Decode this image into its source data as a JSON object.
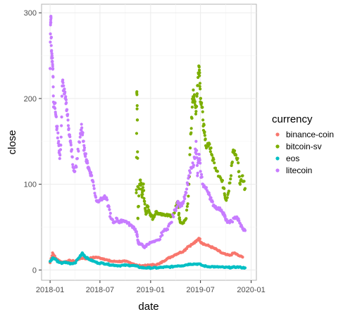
{
  "chart_data": {
    "type": "scatter",
    "title": "",
    "xlabel": "date",
    "ylabel": "close",
    "x_ticks": [
      "2018-01",
      "2018-07",
      "2019-01",
      "2019-07",
      "2020-01"
    ],
    "y_ticks": [
      0,
      100,
      200,
      300
    ],
    "xlim": [
      "2017-12-01",
      "2020-01-20"
    ],
    "ylim": [
      -12,
      310
    ],
    "grid": true,
    "legend_title": "currency",
    "legend_position": "right",
    "series": [
      {
        "name": "binance-coin",
        "color": "#F8766D",
        "points": [
          [
            "2018-01-01",
            8.5
          ],
          [
            "2018-01-10",
            20
          ],
          [
            "2018-01-20",
            14
          ],
          [
            "2018-02-01",
            11
          ],
          [
            "2018-02-15",
            9
          ],
          [
            "2018-03-01",
            10
          ],
          [
            "2018-03-15",
            11
          ],
          [
            "2018-04-01",
            10
          ],
          [
            "2018-04-15",
            13
          ],
          [
            "2018-05-01",
            14
          ],
          [
            "2018-05-15",
            13
          ],
          [
            "2018-06-01",
            14
          ],
          [
            "2018-06-15",
            15
          ],
          [
            "2018-07-01",
            14
          ],
          [
            "2018-07-15",
            13
          ],
          [
            "2018-08-01",
            11
          ],
          [
            "2018-08-15",
            10
          ],
          [
            "2018-09-01",
            10
          ],
          [
            "2018-09-15",
            10
          ],
          [
            "2018-10-01",
            10
          ],
          [
            "2018-10-15",
            9
          ],
          [
            "2018-11-01",
            7
          ],
          [
            "2018-11-15",
            5
          ],
          [
            "2018-12-01",
            5
          ],
          [
            "2018-12-15",
            5
          ],
          [
            "2019-01-01",
            6
          ],
          [
            "2019-01-15",
            6
          ],
          [
            "2019-02-01",
            7
          ],
          [
            "2019-02-15",
            10
          ],
          [
            "2019-03-01",
            13
          ],
          [
            "2019-03-15",
            15
          ],
          [
            "2019-04-01",
            18
          ],
          [
            "2019-04-15",
            20
          ],
          [
            "2019-05-01",
            22
          ],
          [
            "2019-05-15",
            27
          ],
          [
            "2019-06-01",
            30
          ],
          [
            "2019-06-15",
            33
          ],
          [
            "2019-06-25",
            37
          ],
          [
            "2019-07-05",
            32
          ],
          [
            "2019-07-15",
            30
          ],
          [
            "2019-08-01",
            28
          ],
          [
            "2019-08-15",
            26
          ],
          [
            "2019-09-01",
            23
          ],
          [
            "2019-09-15",
            20
          ],
          [
            "2019-10-01",
            18
          ],
          [
            "2019-10-15",
            17
          ],
          [
            "2019-11-01",
            20
          ],
          [
            "2019-11-15",
            17
          ],
          [
            "2019-12-01",
            15
          ]
        ]
      },
      {
        "name": "bitcoin-sv",
        "color": "#7CAE00",
        "points": [
          [
            "2018-11-10",
            90
          ],
          [
            "2018-11-12",
            208
          ],
          [
            "2018-11-14",
            175
          ],
          [
            "2018-11-16",
            60
          ],
          [
            "2018-11-20",
            95
          ],
          [
            "2018-11-25",
            105
          ],
          [
            "2018-12-01",
            85
          ],
          [
            "2018-12-05",
            100
          ],
          [
            "2018-12-10",
            80
          ],
          [
            "2018-12-15",
            65
          ],
          [
            "2018-12-20",
            75
          ],
          [
            "2018-12-25",
            70
          ],
          [
            "2019-01-01",
            65
          ],
          [
            "2019-01-10",
            60
          ],
          [
            "2019-01-20",
            68
          ],
          [
            "2019-02-01",
            65
          ],
          [
            "2019-02-15",
            64
          ],
          [
            "2019-03-01",
            65
          ],
          [
            "2019-03-15",
            62
          ],
          [
            "2019-04-01",
            70
          ],
          [
            "2019-04-10",
            80
          ],
          [
            "2019-04-15",
            60
          ],
          [
            "2019-04-20",
            55
          ],
          [
            "2019-05-01",
            55
          ],
          [
            "2019-05-10",
            60
          ],
          [
            "2019-05-20",
            100
          ],
          [
            "2019-05-28",
            160
          ],
          [
            "2019-06-01",
            190
          ],
          [
            "2019-06-05",
            210
          ],
          [
            "2019-06-10",
            195
          ],
          [
            "2019-06-15",
            185
          ],
          [
            "2019-06-20",
            215
          ],
          [
            "2019-06-25",
            238
          ],
          [
            "2019-06-28",
            230
          ],
          [
            "2019-07-01",
            200
          ],
          [
            "2019-07-05",
            195
          ],
          [
            "2019-07-10",
            175
          ],
          [
            "2019-07-15",
            160
          ],
          [
            "2019-07-20",
            145
          ],
          [
            "2019-08-01",
            148
          ],
          [
            "2019-08-10",
            135
          ],
          [
            "2019-08-20",
            125
          ],
          [
            "2019-09-01",
            115
          ],
          [
            "2019-09-15",
            105
          ],
          [
            "2019-09-25",
            95
          ],
          [
            "2019-10-01",
            82
          ],
          [
            "2019-10-10",
            90
          ],
          [
            "2019-10-20",
            110
          ],
          [
            "2019-10-28",
            140
          ],
          [
            "2019-11-05",
            135
          ],
          [
            "2019-11-15",
            125
          ],
          [
            "2019-11-22",
            100
          ],
          [
            "2019-12-01",
            110
          ],
          [
            "2019-12-10",
            95
          ]
        ]
      },
      {
        "name": "eos",
        "color": "#00BFC4",
        "points": [
          [
            "2018-01-01",
            10
          ],
          [
            "2018-01-10",
            14
          ],
          [
            "2018-01-20",
            13
          ],
          [
            "2018-02-01",
            9
          ],
          [
            "2018-02-15",
            8
          ],
          [
            "2018-03-01",
            9
          ],
          [
            "2018-03-15",
            7
          ],
          [
            "2018-04-01",
            8
          ],
          [
            "2018-04-15",
            14
          ],
          [
            "2018-04-28",
            20
          ],
          [
            "2018-05-10",
            15
          ],
          [
            "2018-05-25",
            12
          ],
          [
            "2018-06-10",
            10
          ],
          [
            "2018-06-25",
            8
          ],
          [
            "2018-07-10",
            8
          ],
          [
            "2018-07-25",
            7
          ],
          [
            "2018-08-10",
            6
          ],
          [
            "2018-08-25",
            5.5
          ],
          [
            "2018-09-10",
            5
          ],
          [
            "2018-09-25",
            5.5
          ],
          [
            "2018-10-10",
            5.5
          ],
          [
            "2018-10-25",
            5.3
          ],
          [
            "2018-11-10",
            4.5
          ],
          [
            "2018-11-25",
            3
          ],
          [
            "2018-12-10",
            2.5
          ],
          [
            "2018-12-25",
            2.5
          ],
          [
            "2019-01-10",
            2.5
          ],
          [
            "2019-01-25",
            2.5
          ],
          [
            "2019-02-10",
            3
          ],
          [
            "2019-02-25",
            3.5
          ],
          [
            "2019-03-10",
            3.5
          ],
          [
            "2019-03-25",
            4
          ],
          [
            "2019-04-10",
            5
          ],
          [
            "2019-04-25",
            5
          ],
          [
            "2019-05-10",
            6
          ],
          [
            "2019-05-25",
            7
          ],
          [
            "2019-06-10",
            7
          ],
          [
            "2019-06-25",
            7
          ],
          [
            "2019-07-10",
            5
          ],
          [
            "2019-07-25",
            4
          ],
          [
            "2019-08-10",
            4
          ],
          [
            "2019-08-25",
            3.5
          ],
          [
            "2019-09-10",
            3.5
          ],
          [
            "2019-09-25",
            3
          ],
          [
            "2019-10-10",
            3
          ],
          [
            "2019-10-25",
            3
          ],
          [
            "2019-11-10",
            3.5
          ],
          [
            "2019-11-25",
            3
          ],
          [
            "2019-12-10",
            2.5
          ]
        ]
      },
      {
        "name": "litecoin",
        "color": "#C77CFF",
        "points": [
          [
            "2018-01-01",
            235
          ],
          [
            "2018-01-03",
            288
          ],
          [
            "2018-01-04",
            296
          ],
          [
            "2018-01-06",
            255
          ],
          [
            "2018-01-08",
            250
          ],
          [
            "2018-01-10",
            240
          ],
          [
            "2018-01-12",
            225
          ],
          [
            "2018-01-14",
            190
          ],
          [
            "2018-01-18",
            195
          ],
          [
            "2018-01-22",
            180
          ],
          [
            "2018-01-26",
            165
          ],
          [
            "2018-02-01",
            150
          ],
          [
            "2018-02-05",
            130
          ],
          [
            "2018-02-10",
            155
          ],
          [
            "2018-02-15",
            220
          ],
          [
            "2018-02-20",
            210
          ],
          [
            "2018-02-25",
            200
          ],
          [
            "2018-03-01",
            195
          ],
          [
            "2018-03-05",
            180
          ],
          [
            "2018-03-10",
            165
          ],
          [
            "2018-03-15",
            150
          ],
          [
            "2018-03-20",
            140
          ],
          [
            "2018-03-25",
            120
          ],
          [
            "2018-04-01",
            115
          ],
          [
            "2018-04-10",
            130
          ],
          [
            "2018-04-20",
            155
          ],
          [
            "2018-04-25",
            170
          ],
          [
            "2018-05-01",
            150
          ],
          [
            "2018-05-05",
            140
          ],
          [
            "2018-05-10",
            135
          ],
          [
            "2018-05-15",
            125
          ],
          [
            "2018-05-20",
            120
          ],
          [
            "2018-05-25",
            115
          ],
          [
            "2018-06-01",
            110
          ],
          [
            "2018-06-10",
            95
          ],
          [
            "2018-06-20",
            80
          ],
          [
            "2018-07-01",
            82
          ],
          [
            "2018-07-10",
            83
          ],
          [
            "2018-07-20",
            85
          ],
          [
            "2018-08-01",
            75
          ],
          [
            "2018-08-10",
            60
          ],
          [
            "2018-08-20",
            55
          ],
          [
            "2018-09-01",
            60
          ],
          [
            "2018-09-10",
            55
          ],
          [
            "2018-09-20",
            58
          ],
          [
            "2018-10-01",
            57
          ],
          [
            "2018-10-10",
            55
          ],
          [
            "2018-10-20",
            52
          ],
          [
            "2018-11-01",
            50
          ],
          [
            "2018-11-10",
            45
          ],
          [
            "2018-11-15",
            35
          ],
          [
            "2018-11-20",
            30
          ],
          [
            "2018-12-01",
            30
          ],
          [
            "2018-12-10",
            26
          ],
          [
            "2018-12-20",
            30
          ],
          [
            "2019-01-01",
            32
          ],
          [
            "2019-01-15",
            33
          ],
          [
            "2019-02-01",
            35
          ],
          [
            "2019-02-15",
            45
          ],
          [
            "2019-03-01",
            48
          ],
          [
            "2019-03-15",
            55
          ],
          [
            "2019-04-01",
            70
          ],
          [
            "2019-04-10",
            80
          ],
          [
            "2019-04-20",
            75
          ],
          [
            "2019-05-01",
            80
          ],
          [
            "2019-05-10",
            90
          ],
          [
            "2019-05-20",
            110
          ],
          [
            "2019-06-01",
            120
          ],
          [
            "2019-06-10",
            130
          ],
          [
            "2019-06-15",
            150
          ],
          [
            "2019-06-20",
            110
          ],
          [
            "2019-06-25",
            135
          ],
          [
            "2019-07-01",
            115
          ],
          [
            "2019-07-10",
            100
          ],
          [
            "2019-07-20",
            95
          ],
          [
            "2019-08-01",
            90
          ],
          [
            "2019-08-10",
            80
          ],
          [
            "2019-08-20",
            75
          ],
          [
            "2019-09-01",
            72
          ],
          [
            "2019-09-15",
            70
          ],
          [
            "2019-09-25",
            65
          ],
          [
            "2019-10-01",
            58
          ],
          [
            "2019-10-15",
            55
          ],
          [
            "2019-11-01",
            60
          ],
          [
            "2019-11-10",
            62
          ],
          [
            "2019-11-20",
            55
          ],
          [
            "2019-12-01",
            48
          ],
          [
            "2019-12-10",
            46
          ]
        ]
      }
    ]
  }
}
